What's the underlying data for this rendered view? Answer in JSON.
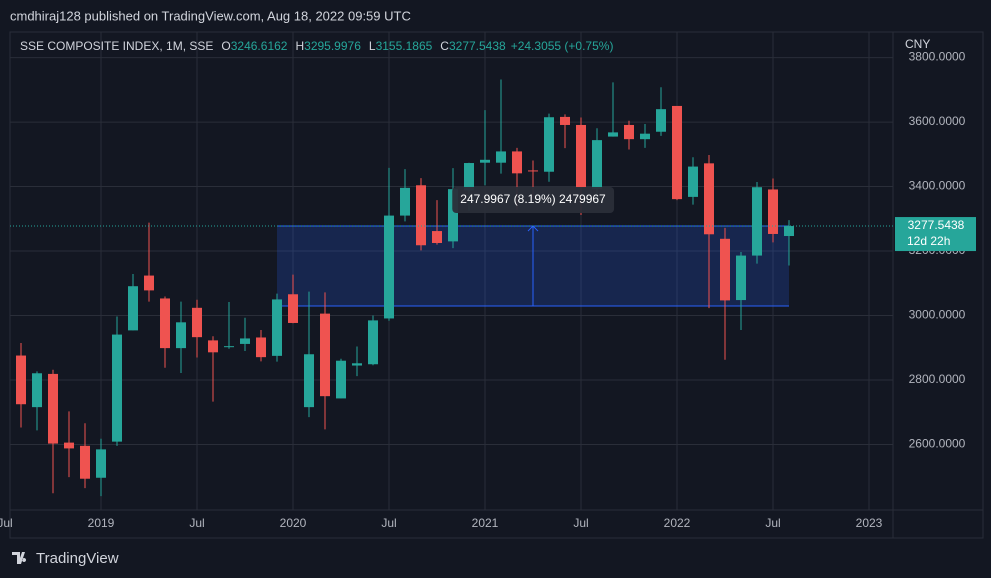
{
  "header": {
    "published": "cmdhiraj128 published on TradingView.com, Aug 18, 2022 09:59 UTC"
  },
  "chart_data": {
    "type": "candlestick",
    "title": "SSE COMPOSITE INDEX, 1M, SSE",
    "legend_labels": [
      "O",
      "H",
      "L",
      "C"
    ],
    "change": "+24.3055 (+0.75%)",
    "currency": "CNY",
    "countdown": "12d 22h",
    "up_color": "#26a69a",
    "down_color": "#ef5350",
    "grid": true,
    "x": [
      "2018-08",
      "2018-09",
      "2018-10",
      "2018-11",
      "2018-12",
      "2019-01",
      "2019-02",
      "2019-03",
      "2019-04",
      "2019-05",
      "2019-06",
      "2019-07",
      "2019-08",
      "2019-09",
      "2019-10",
      "2019-11",
      "2019-12",
      "2020-01",
      "2020-02",
      "2020-03",
      "2020-04",
      "2020-05",
      "2020-06",
      "2020-07",
      "2020-08",
      "2020-09",
      "2020-10",
      "2020-11",
      "2020-12",
      "2021-01",
      "2021-02",
      "2021-03",
      "2021-04",
      "2021-05",
      "2021-06",
      "2021-07",
      "2021-08",
      "2021-09",
      "2021-10",
      "2021-11",
      "2021-12",
      "2022-01",
      "2022-02",
      "2022-03",
      "2022-04",
      "2022-05",
      "2022-06",
      "2022-07",
      "2022-08"
    ],
    "open": [
      2876,
      2716,
      2819,
      2606,
      2596,
      2497,
      2609,
      2954,
      3124,
      3053,
      2899,
      3024,
      2923,
      2904,
      2912,
      2932,
      2875,
      3066,
      2716,
      3006,
      2743,
      2845,
      2849,
      2991,
      3310,
      3404,
      3262,
      3230,
      3388,
      3474,
      3474,
      3509,
      3450,
      3446,
      3616,
      3591,
      3392,
      3555,
      3591,
      3547,
      3570,
      3650,
      3368,
      3472,
      3238,
      3048,
      3186,
      3391,
      3246.6162
    ],
    "high": [
      2915,
      2827,
      2832,
      2703,
      2666,
      2618,
      2997,
      3129,
      3288,
      3059,
      3043,
      3049,
      2936,
      3042,
      2993,
      2955,
      3068,
      3127,
      3074,
      3072,
      2866,
      2904,
      3000,
      3458,
      3454,
      3426,
      3358,
      3457,
      3474,
      3637,
      3732,
      3520,
      3481,
      3626,
      3624,
      3614,
      3581,
      3723,
      3604,
      3594,
      3708,
      3650,
      3491,
      3498,
      3272,
      3197,
      3414,
      3425,
      3295.9976
    ],
    "low": [
      2653,
      2644,
      2449,
      2499,
      2465,
      2440,
      2596,
      2954,
      3043,
      2838,
      2822,
      2870,
      2733,
      2897,
      2890,
      2858,
      2857,
      2976,
      2685,
      2647,
      2743,
      2812,
      2846,
      2984,
      3292,
      3202,
      3220,
      3209,
      3325,
      3404,
      3440,
      3328,
      3364,
      3415,
      3519,
      3312,
      3344,
      3555,
      3515,
      3520,
      3557,
      3358,
      3344,
      3023,
      2863,
      2955,
      3161,
      3227,
      3155.1865
    ],
    "close": [
      2725,
      2821,
      2603,
      2588,
      2494,
      2585,
      2941,
      3091,
      3078,
      2899,
      2979,
      2933,
      2886,
      2905,
      2929,
      2871,
      3050,
      2977,
      2880,
      2750,
      2860,
      2852,
      2985,
      3310,
      3396,
      3218,
      3225,
      3392,
      3473,
      3483,
      3509,
      3441,
      3447,
      3615,
      3591,
      3397,
      3544,
      3568,
      3547,
      3564,
      3640,
      3361,
      3462,
      3252,
      3047,
      3186,
      3398,
      3253,
      3277.5438
    ],
    "xlim": [
      "2018-07",
      "2023-03"
    ],
    "xticks": [
      {
        "value": "2018-07",
        "label": "Jul"
      },
      {
        "value": "2019-01",
        "label": "2019"
      },
      {
        "value": "2019-07",
        "label": "Jul"
      },
      {
        "value": "2020-01",
        "label": "2020"
      },
      {
        "value": "2020-07",
        "label": "Jul"
      },
      {
        "value": "2021-01",
        "label": "2021"
      },
      {
        "value": "2021-07",
        "label": "Jul"
      },
      {
        "value": "2022-01",
        "label": "2022"
      },
      {
        "value": "2022-07",
        "label": "Jul"
      },
      {
        "value": "2023-01",
        "label": "2023"
      }
    ],
    "ylim": [
      2397,
      3870
    ],
    "yticks": [
      {
        "value": 2600,
        "label": "2600.0000"
      },
      {
        "value": 2800,
        "label": "2800.0000"
      },
      {
        "value": 3000,
        "label": "3000.0000"
      },
      {
        "value": 3200,
        "label": "3200.0000"
      },
      {
        "value": 3400,
        "label": "3400.0000"
      },
      {
        "value": 3600,
        "label": "3600.0000"
      },
      {
        "value": 3800,
        "label": "3800.0000"
      }
    ],
    "measure": {
      "x_from": "2019-12",
      "x_to": "2022-08",
      "from": 3029.5471,
      "to": 3277.5438,
      "label": "247.9967 (8.19%) 2479967",
      "color": "#2962ff"
    }
  },
  "footer": {
    "brand": "TradingView"
  }
}
